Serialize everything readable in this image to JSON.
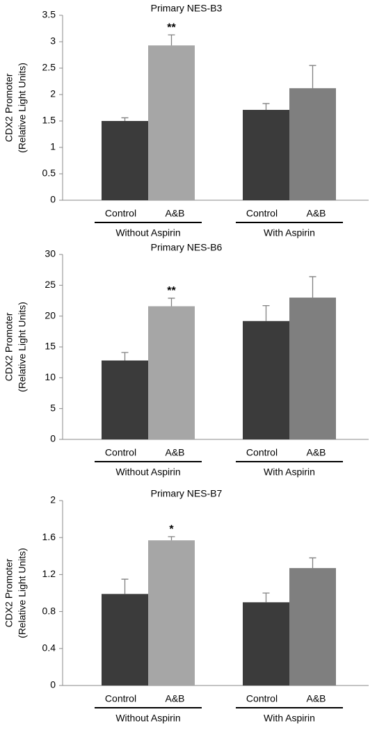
{
  "chart_data": [
    {
      "type": "bar",
      "title": "Primary NES-B3",
      "ylabel": [
        "CDX2 Promoter",
        "(Relative Light Units)"
      ],
      "categories": [
        "Control",
        "A&B",
        "Control",
        "A&B"
      ],
      "groups": [
        "Without Aspirin",
        "With Aspirin"
      ],
      "values": [
        1.5,
        2.93,
        1.71,
        2.12
      ],
      "errors": [
        0.06,
        0.2,
        0.12,
        0.43
      ],
      "annotations": [
        null,
        "**",
        null,
        null
      ],
      "colors": [
        "#3b3b3b",
        "#a6a6a6",
        "#3b3b3b",
        "#7f7f7f"
      ],
      "ylim": [
        0,
        3.5
      ],
      "yticks": [
        0,
        0.5,
        1,
        1.5,
        2,
        2.5,
        3,
        3.5
      ]
    },
    {
      "type": "bar",
      "title": "Primary NES-B6",
      "ylabel": [
        "CDX2 Promoter",
        "(Relative Light Units)"
      ],
      "categories": [
        "Control",
        "A&B",
        "Control",
        "A&B"
      ],
      "groups": [
        "Without Aspirin",
        "With Aspirin"
      ],
      "values": [
        12.8,
        21.6,
        19.2,
        23.0
      ],
      "errors": [
        1.3,
        1.3,
        2.5,
        3.4
      ],
      "annotations": [
        null,
        "**",
        null,
        null
      ],
      "colors": [
        "#3b3b3b",
        "#a6a6a6",
        "#3b3b3b",
        "#7f7f7f"
      ],
      "ylim": [
        0,
        30
      ],
      "yticks": [
        0,
        5,
        10,
        15,
        20,
        25,
        30
      ]
    },
    {
      "type": "bar",
      "title": "Primary NES-B7",
      "ylabel": [
        "CDX2 Promoter",
        "(Relative Light Units)"
      ],
      "categories": [
        "Control",
        "A&B",
        "Control",
        "A&B"
      ],
      "groups": [
        "Without Aspirin",
        "With Aspirin"
      ],
      "values": [
        0.99,
        1.57,
        0.9,
        1.27
      ],
      "errors": [
        0.16,
        0.04,
        0.1,
        0.11
      ],
      "annotations": [
        null,
        "*",
        null,
        null
      ],
      "colors": [
        "#3b3b3b",
        "#a6a6a6",
        "#3b3b3b",
        "#7f7f7f"
      ],
      "ylim": [
        0,
        2
      ],
      "yticks": [
        0,
        0.4,
        0.8,
        1.2,
        1.6,
        2
      ]
    }
  ]
}
